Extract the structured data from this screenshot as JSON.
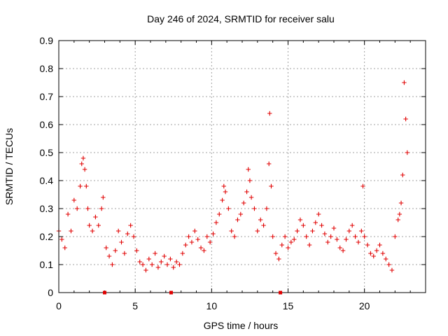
{
  "chart_data": {
    "type": "scatter",
    "title": "Day 246 of 2024, SRMTID for receiver salu",
    "xlabel": "GPS time / hours",
    "ylabel": "SRMTID / TECUs",
    "xlim": [
      0,
      24
    ],
    "ylim": [
      0,
      0.9
    ],
    "xticks": [
      0,
      5,
      10,
      15,
      20
    ],
    "xtick_labels": [
      "0",
      "5",
      "10",
      "15",
      "20"
    ],
    "yticks": [
      0,
      0.1,
      0.2,
      0.3,
      0.4,
      0.5,
      0.6,
      0.7,
      0.8,
      0.9
    ],
    "ytick_labels": [
      "0",
      "0.1",
      "0.2",
      "0.3",
      "0.4",
      "0.5",
      "0.6",
      "0.7",
      "0.8",
      "0.9"
    ],
    "grid": true,
    "marker": "+",
    "color": "#e00000",
    "marker_color": "#e00000",
    "gap_markers_x": [
      3.0,
      7.35,
      14.5
    ],
    "series": [
      {
        "name": "SRMTID",
        "x": [
          0.0,
          0.2,
          0.4,
          0.6,
          0.8,
          1.0,
          1.2,
          1.4,
          1.5,
          1.6,
          1.7,
          1.8,
          1.9,
          2.0,
          2.2,
          2.4,
          2.6,
          2.8,
          2.9,
          3.1,
          3.3,
          3.5,
          3.7,
          3.9,
          4.1,
          4.3,
          4.5,
          4.7,
          4.9,
          5.1,
          5.3,
          5.5,
          5.7,
          5.9,
          6.1,
          6.3,
          6.5,
          6.7,
          6.9,
          7.1,
          7.3,
          7.5,
          7.7,
          7.9,
          8.1,
          8.3,
          8.5,
          8.7,
          8.9,
          9.1,
          9.3,
          9.5,
          9.7,
          9.9,
          10.1,
          10.3,
          10.5,
          10.7,
          10.8,
          10.9,
          11.1,
          11.3,
          11.5,
          11.7,
          11.9,
          12.1,
          12.3,
          12.4,
          12.5,
          12.6,
          12.8,
          13.0,
          13.2,
          13.4,
          13.6,
          13.75,
          13.8,
          13.9,
          14.0,
          14.2,
          14.4,
          14.6,
          14.8,
          15.0,
          15.2,
          15.4,
          15.6,
          15.8,
          16.0,
          16.2,
          16.4,
          16.6,
          16.8,
          17.0,
          17.2,
          17.4,
          17.6,
          17.8,
          18.0,
          18.2,
          18.4,
          18.6,
          18.8,
          19.0,
          19.2,
          19.4,
          19.6,
          19.8,
          19.9,
          20.0,
          20.2,
          20.4,
          20.6,
          20.8,
          21.0,
          21.2,
          21.4,
          21.6,
          21.8,
          22.0,
          22.2,
          22.3,
          22.4,
          22.5,
          22.6,
          22.7,
          22.8
        ],
        "y": [
          0.22,
          0.19,
          0.16,
          0.28,
          0.22,
          0.33,
          0.3,
          0.38,
          0.46,
          0.48,
          0.44,
          0.38,
          0.3,
          0.24,
          0.22,
          0.27,
          0.24,
          0.3,
          0.34,
          0.16,
          0.13,
          0.1,
          0.15,
          0.22,
          0.18,
          0.14,
          0.21,
          0.24,
          0.2,
          0.15,
          0.11,
          0.1,
          0.08,
          0.12,
          0.1,
          0.14,
          0.09,
          0.11,
          0.13,
          0.1,
          0.12,
          0.09,
          0.11,
          0.1,
          0.14,
          0.17,
          0.2,
          0.18,
          0.22,
          0.19,
          0.16,
          0.15,
          0.2,
          0.18,
          0.21,
          0.25,
          0.28,
          0.33,
          0.38,
          0.36,
          0.3,
          0.22,
          0.2,
          0.26,
          0.28,
          0.32,
          0.36,
          0.44,
          0.4,
          0.34,
          0.3,
          0.22,
          0.26,
          0.24,
          0.3,
          0.46,
          0.64,
          0.38,
          0.2,
          0.14,
          0.12,
          0.17,
          0.2,
          0.16,
          0.18,
          0.19,
          0.22,
          0.26,
          0.24,
          0.2,
          0.17,
          0.22,
          0.25,
          0.28,
          0.24,
          0.21,
          0.18,
          0.2,
          0.23,
          0.19,
          0.16,
          0.15,
          0.19,
          0.22,
          0.24,
          0.2,
          0.18,
          0.22,
          0.38,
          0.2,
          0.17,
          0.14,
          0.13,
          0.15,
          0.17,
          0.14,
          0.12,
          0.1,
          0.08,
          0.2,
          0.26,
          0.28,
          0.32,
          0.42,
          0.75,
          0.62,
          0.5
        ]
      }
    ]
  }
}
